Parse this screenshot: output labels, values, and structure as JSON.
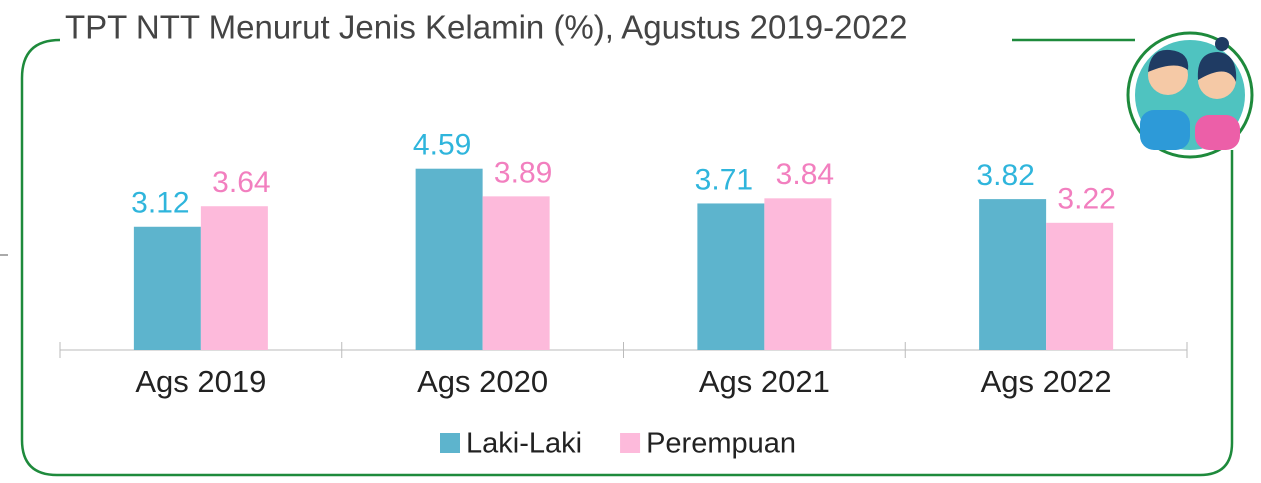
{
  "chart_data": {
    "type": "bar",
    "title": "TPT NTT Menurut Jenis Kelamin (%), Agustus 2019-2022",
    "categories": [
      "Ags 2019",
      "Ags 2020",
      "Ags 2021",
      "Ags 2022"
    ],
    "series": [
      {
        "name": "Laki-Laki",
        "color": "#5db4cd",
        "label_color": "#2fb5dc",
        "values": [
          3.12,
          4.59,
          3.71,
          3.82
        ]
      },
      {
        "name": "Perempuan",
        "color": "#fdbadb",
        "label_color": "#f27fbf",
        "values": [
          3.64,
          3.89,
          3.84,
          3.22
        ]
      }
    ],
    "ylim": [
      0,
      5
    ],
    "legend": "bottom",
    "frame_color": "#1e8a3c"
  }
}
